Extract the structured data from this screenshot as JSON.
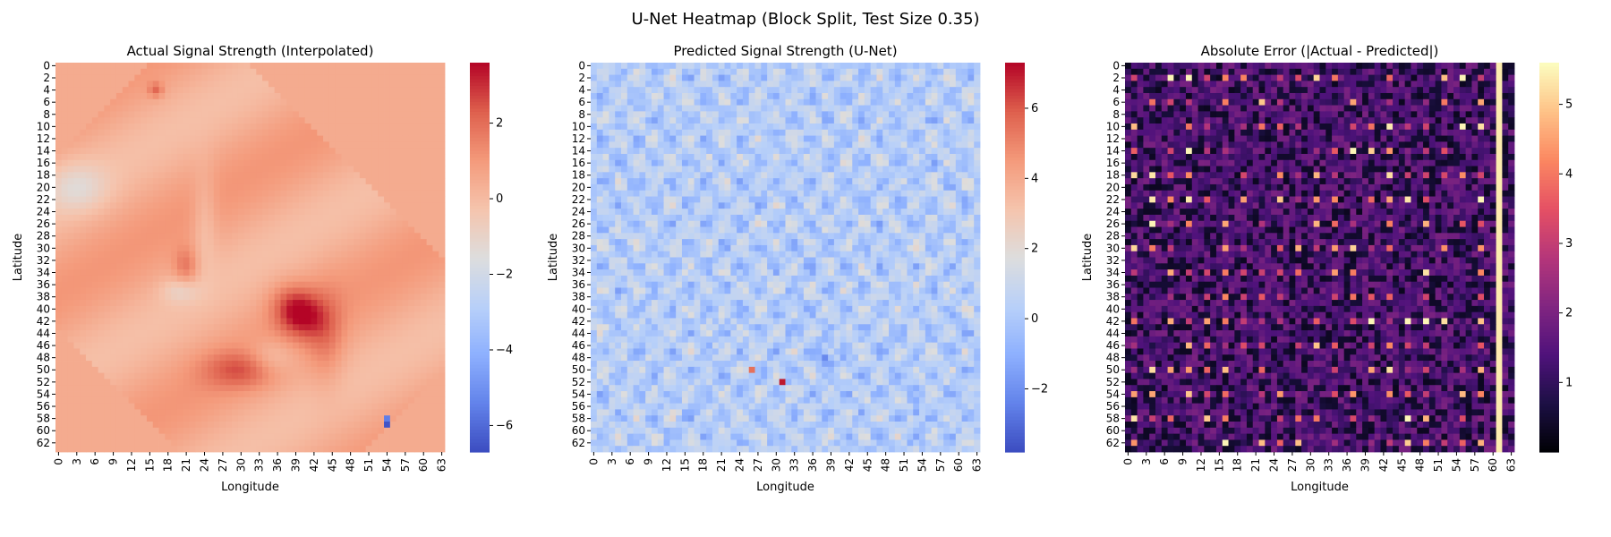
{
  "figure": {
    "title": "U-Net Heatmap (Block Split, Test Size 0.35)"
  },
  "chart_data": [
    {
      "type": "heatmap",
      "title": "Actual Signal Strength (Interpolated)",
      "xlabel": "Longitude",
      "ylabel": "Latitude",
      "grid_size": [
        64,
        64
      ],
      "x_ticks": [
        "0",
        "3",
        "6",
        "9",
        "12",
        "15",
        "18",
        "21",
        "24",
        "27",
        "30",
        "33",
        "36",
        "39",
        "42",
        "45",
        "48",
        "51",
        "54",
        "57",
        "60",
        "63"
      ],
      "y_ticks": [
        "0",
        "2",
        "4",
        "6",
        "8",
        "10",
        "12",
        "14",
        "16",
        "18",
        "20",
        "22",
        "24",
        "26",
        "28",
        "30",
        "32",
        "34",
        "36",
        "38",
        "40",
        "42",
        "44",
        "46",
        "48",
        "50",
        "52",
        "54",
        "56",
        "58",
        "60",
        "62"
      ],
      "colormap": "coolwarm",
      "vmin": -6.7,
      "vmax": 3.6,
      "colorbar_ticks": [
        "-6",
        "-4",
        "-2",
        "0",
        "2"
      ],
      "colorbar_tick_values": [
        -6,
        -4,
        -2,
        0,
        2
      ],
      "background_value": 0.5,
      "features": [
        {
          "row": 50,
          "col": 30,
          "value": 3.4
        },
        {
          "row": 4,
          "col": 16,
          "value": 2.5
        },
        {
          "row": 33,
          "col": 21,
          "value": 2.0
        },
        {
          "row": 20,
          "col": 3,
          "value": -0.8
        },
        {
          "row": 48,
          "col": 35,
          "value": -0.9
        },
        {
          "row": 58,
          "col": 54,
          "value": -5.5
        },
        {
          "row": 59,
          "col": 54,
          "value": -6.5
        }
      ]
    },
    {
      "type": "heatmap",
      "title": "Predicted Signal Strength (U-Net)",
      "xlabel": "Longitude",
      "ylabel": "Latitude",
      "grid_size": [
        64,
        64
      ],
      "x_ticks": [
        "0",
        "3",
        "6",
        "9",
        "12",
        "15",
        "18",
        "21",
        "24",
        "27",
        "30",
        "33",
        "36",
        "39",
        "42",
        "45",
        "48",
        "51",
        "54",
        "57",
        "60",
        "63"
      ],
      "y_ticks": [
        "0",
        "2",
        "4",
        "6",
        "8",
        "10",
        "12",
        "14",
        "16",
        "18",
        "20",
        "22",
        "24",
        "26",
        "28",
        "30",
        "32",
        "34",
        "36",
        "38",
        "40",
        "42",
        "44",
        "46",
        "48",
        "50",
        "52",
        "54",
        "56",
        "58",
        "60",
        "62"
      ],
      "colormap": "coolwarm",
      "vmin": -3.8,
      "vmax": 7.3,
      "colorbar_ticks": [
        "-2",
        "0",
        "2",
        "4",
        "6"
      ],
      "colorbar_tick_values": [
        -2,
        0,
        2,
        4,
        6
      ],
      "typical_range": [
        -2,
        3
      ],
      "features": [
        {
          "row": 52,
          "col": 31,
          "value": 7.0
        },
        {
          "row": 50,
          "col": 26,
          "value": 5.5
        },
        {
          "row": 48,
          "col": 38,
          "value": -3.0
        },
        {
          "row": 57,
          "col": 53,
          "value": -2.5
        }
      ]
    },
    {
      "type": "heatmap",
      "title": "Absolute Error (|Actual - Predicted|)",
      "xlabel": "Longitude",
      "ylabel": "Latitude",
      "grid_size": [
        64,
        64
      ],
      "x_ticks": [
        "0",
        "3",
        "6",
        "9",
        "12",
        "15",
        "18",
        "21",
        "24",
        "27",
        "30",
        "33",
        "36",
        "39",
        "42",
        "45",
        "48",
        "51",
        "54",
        "57",
        "60",
        "63"
      ],
      "y_ticks": [
        "0",
        "2",
        "4",
        "6",
        "8",
        "10",
        "12",
        "14",
        "16",
        "18",
        "20",
        "22",
        "24",
        "26",
        "28",
        "30",
        "32",
        "34",
        "36",
        "38",
        "40",
        "42",
        "44",
        "46",
        "48",
        "50",
        "52",
        "54",
        "56",
        "58",
        "60",
        "62"
      ],
      "colormap": "magma",
      "vmin": 0.0,
      "vmax": 5.6,
      "colorbar_ticks": [
        "1",
        "2",
        "3",
        "4",
        "5"
      ],
      "colorbar_tick_values": [
        1,
        2,
        3,
        4,
        5
      ],
      "typical_range": [
        0,
        5.5
      ]
    }
  ]
}
